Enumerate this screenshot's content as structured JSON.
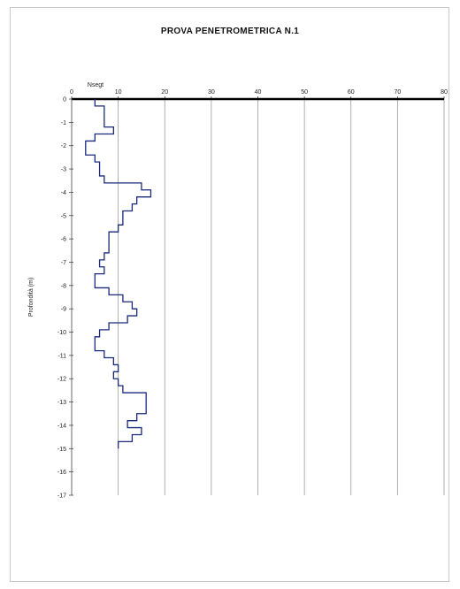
{
  "chart_data": {
    "type": "line",
    "title": "PROVA PENETROMETRICA N.1",
    "xlabel": "Nsegt",
    "ylabel": "Profondità (m)",
    "xlim": [
      0,
      80
    ],
    "ylim": [
      -17,
      0
    ],
    "x_ticks": [
      "0",
      "10",
      "20",
      "30",
      "40",
      "50",
      "60",
      "70",
      "80"
    ],
    "y_ticks": [
      "0",
      "-1",
      "-2",
      "-3",
      "-4",
      "-5",
      "-6",
      "-7",
      "-8",
      "-9",
      "-10",
      "-11",
      "-12",
      "-13",
      "-14",
      "-15",
      "-16",
      "-17"
    ],
    "grid": "vertical",
    "x_axis_position": "top",
    "series": [
      {
        "color": "#1a2a7a",
        "step": true,
        "depths": [
          0,
          0.3,
          0.6,
          0.9,
          1.2,
          1.5,
          1.8,
          2.1,
          2.4,
          2.7,
          3.0,
          3.3,
          3.6,
          3.9,
          4.2,
          4.5,
          4.8,
          5.1,
          5.4,
          5.7,
          6.0,
          6.3,
          6.6,
          6.9,
          7.2,
          7.5,
          7.8,
          8.1,
          8.4,
          8.7,
          9.0,
          9.3,
          9.6,
          9.9,
          10.2,
          10.5,
          10.8,
          11.1,
          11.4,
          11.7,
          12.0,
          12.3,
          12.6,
          12.9,
          13.2,
          13.5,
          13.8,
          14.1,
          14.4,
          14.7
        ],
        "values": [
          5,
          7,
          7,
          7,
          9,
          5,
          3,
          3,
          5,
          6,
          6,
          7,
          15,
          17,
          14,
          13,
          11,
          11,
          10,
          8,
          8,
          8,
          7,
          6,
          7,
          5,
          5,
          8,
          11,
          13,
          14,
          12,
          8,
          6,
          5,
          5,
          7,
          9,
          10,
          9,
          10,
          11,
          16,
          16,
          16,
          14,
          12,
          15,
          13,
          10
        ]
      }
    ]
  }
}
